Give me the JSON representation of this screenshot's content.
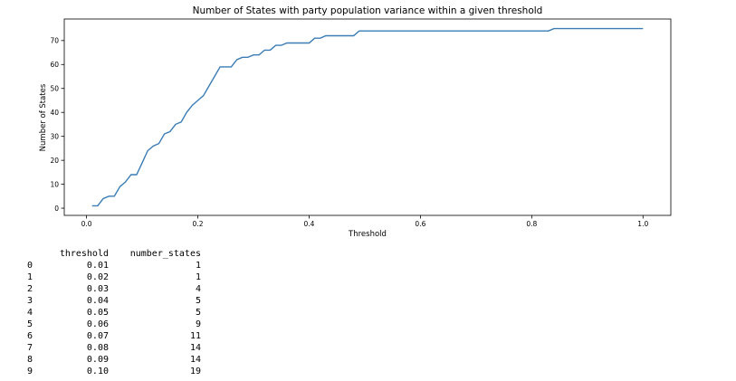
{
  "chart_data": {
    "type": "line",
    "title": "Number of States with party population variance within a given threshold",
    "xlabel": "Threshold",
    "ylabel": "Number of States",
    "xlim": [
      -0.04,
      1.05
    ],
    "ylim": [
      -3,
      79
    ],
    "xticks": [
      0.0,
      0.2,
      0.4,
      0.6,
      0.8,
      1.0
    ],
    "xtick_labels": [
      "0.0",
      "0.2",
      "0.4",
      "0.6",
      "0.8",
      "1.0"
    ],
    "yticks": [
      0,
      10,
      20,
      30,
      40,
      50,
      60,
      70
    ],
    "ytick_labels": [
      "0",
      "10",
      "20",
      "30",
      "40",
      "50",
      "60",
      "70"
    ],
    "grid": false,
    "color": "#3b7cb5",
    "series": [
      {
        "x": [
          0.01,
          0.02,
          0.03,
          0.04,
          0.05,
          0.06,
          0.07,
          0.08,
          0.09,
          0.1,
          0.11,
          0.12,
          0.13,
          0.14,
          0.15,
          0.16,
          0.17,
          0.18,
          0.19,
          0.2,
          0.21,
          0.22,
          0.23,
          0.24,
          0.25,
          0.26,
          0.27,
          0.28,
          0.29,
          0.3,
          0.31,
          0.32,
          0.33,
          0.34,
          0.35,
          0.36,
          0.37,
          0.38,
          0.39,
          0.4,
          0.41,
          0.42,
          0.43,
          0.44,
          0.45,
          0.46,
          0.47,
          0.48,
          0.49,
          0.5,
          0.6,
          0.7,
          0.8,
          0.83,
          0.84,
          0.9,
          1.0
        ],
        "y": [
          1,
          1,
          4,
          5,
          5,
          9,
          11,
          14,
          14,
          19,
          24,
          26,
          27,
          31,
          32,
          35,
          36,
          40,
          43,
          45,
          47,
          51,
          55,
          59,
          59,
          59,
          62,
          63,
          63,
          64,
          64,
          66,
          66,
          68,
          68,
          69,
          69,
          69,
          69,
          69,
          71,
          71,
          72,
          72,
          72,
          72,
          72,
          72,
          74,
          74,
          74,
          74,
          74,
          74,
          75,
          75,
          75
        ]
      }
    ]
  },
  "table": {
    "headers": [
      "threshold",
      "number_states"
    ],
    "rows": [
      {
        "index": "0",
        "threshold": "0.01",
        "number_states": "1"
      },
      {
        "index": "1",
        "threshold": "0.02",
        "number_states": "1"
      },
      {
        "index": "2",
        "threshold": "0.03",
        "number_states": "4"
      },
      {
        "index": "3",
        "threshold": "0.04",
        "number_states": "5"
      },
      {
        "index": "4",
        "threshold": "0.05",
        "number_states": "5"
      },
      {
        "index": "5",
        "threshold": "0.06",
        "number_states": "9"
      },
      {
        "index": "6",
        "threshold": "0.07",
        "number_states": "11"
      },
      {
        "index": "7",
        "threshold": "0.08",
        "number_states": "14"
      },
      {
        "index": "8",
        "threshold": "0.09",
        "number_states": "14"
      },
      {
        "index": "9",
        "threshold": "0.10",
        "number_states": "19"
      }
    ]
  }
}
